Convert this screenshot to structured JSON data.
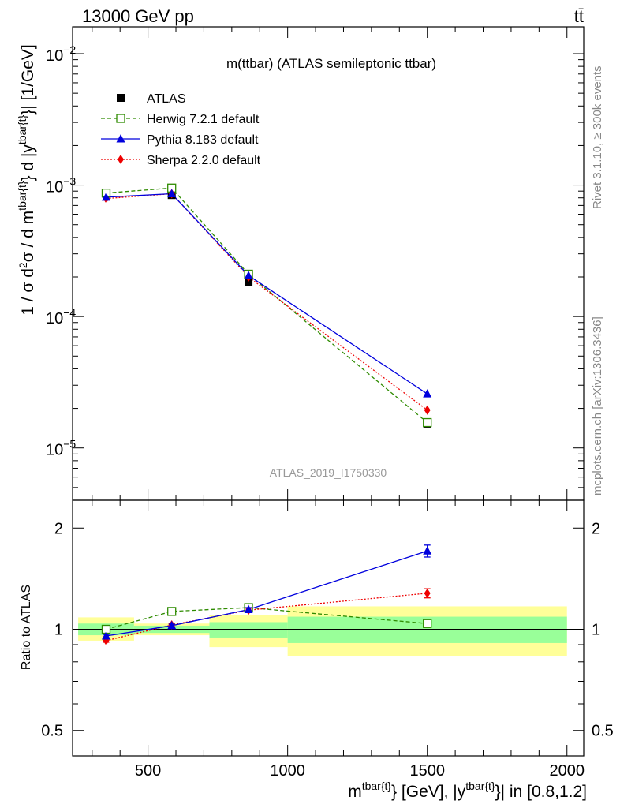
{
  "header": {
    "left": "13000 GeV pp",
    "right": "tt̄"
  },
  "side_labels": {
    "rivet": "Rivet 3.1.10, ≥ 300k events",
    "mcplots": "mcplots.cern.ch [arXiv:1306.3436]"
  },
  "chart_data": [
    {
      "panel": "main",
      "type": "scatter",
      "title": "m(ttbar) (ATLAS semileptonic ttbar)",
      "watermark": "ATLAS_2019_I1750330",
      "ylabel": "1 / σ d²σ / d m^{tbar{t}} d |y^{tbar{t}}| [1/GeV]",
      "y_scale": "log",
      "ylim": [
        4e-06,
        0.016
      ],
      "xlim": [
        230,
        2060
      ],
      "x_ticks": [
        500,
        1000,
        1500,
        2000
      ],
      "y_ticks": [
        {
          "value": 1e-05,
          "mantissa": "10",
          "exponent": "−5"
        },
        {
          "value": 0.0001,
          "mantissa": "10",
          "exponent": "−4"
        },
        {
          "value": 0.001,
          "mantissa": "10",
          "exponent": "−3"
        },
        {
          "value": 0.01,
          "mantissa": "10",
          "exponent": "−2"
        }
      ],
      "legend_position": "top-left",
      "series": [
        {
          "name": "ATLAS",
          "color": "#000000",
          "marker": "square-filled",
          "line": "none",
          "x": [
            350,
            585,
            860,
            1500
          ],
          "y": [
            0.00086,
            0.00084,
            0.000182,
            1.53e-05
          ]
        },
        {
          "name": "Herwig 7.2.1 default",
          "color": "#2e8b00",
          "marker": "square-open",
          "line": "dashed",
          "x": [
            350,
            585,
            860,
            1500
          ],
          "y": [
            0.00087,
            0.00095,
            0.00021,
            1.56e-05
          ]
        },
        {
          "name": "Pythia 8.183 default",
          "color": "#0000dd",
          "marker": "triangle",
          "line": "solid",
          "x": [
            350,
            585,
            860,
            1500
          ],
          "y": [
            0.00081,
            0.00086,
            0.000205,
            2.58e-05
          ]
        },
        {
          "name": "Sherpa 2.2.0 default",
          "color": "#ee0000",
          "marker": "diamond",
          "line": "dotted",
          "x": [
            350,
            585,
            860,
            1500
          ],
          "y": [
            0.00079,
            0.00086,
            0.0002,
            1.94e-05
          ]
        }
      ]
    },
    {
      "panel": "ratio",
      "type": "scatter",
      "xlabel": "m^{tbar{t}} [GeV], |y^{tbar{t}}| in [0.8,1.2]",
      "ylabel": "Ratio to ATLAS",
      "y_scale": "log",
      "ylim": [
        0.42,
        2.42
      ],
      "xlim": [
        230,
        2060
      ],
      "y_ticks": [
        {
          "value": 0.5,
          "label": "0.5"
        },
        {
          "value": 1,
          "label": "1"
        },
        {
          "value": 2,
          "label": "2"
        }
      ],
      "bins": [
        {
          "xlow": 250,
          "xhigh": 450,
          "stat_low": 0.96,
          "stat_high": 1.04,
          "tot_low": 0.925,
          "tot_high": 1.085
        },
        {
          "xlow": 450,
          "xhigh": 720,
          "stat_low": 0.975,
          "stat_high": 1.025,
          "tot_low": 0.96,
          "tot_high": 1.04
        },
        {
          "xlow": 720,
          "xhigh": 1000,
          "stat_low": 0.945,
          "stat_high": 1.05,
          "tot_low": 0.885,
          "tot_high": 1.105
        },
        {
          "xlow": 1000,
          "xhigh": 2000,
          "stat_low": 0.91,
          "stat_high": 1.09,
          "tot_low": 0.83,
          "tot_high": 1.17
        }
      ],
      "series": [
        {
          "name": "Herwig 7.2.1 default",
          "x": [
            350,
            585,
            860,
            1500
          ],
          "y": [
            1.0,
            1.13,
            1.16,
            1.04
          ],
          "err": [
            0,
            0,
            0,
            0
          ]
        },
        {
          "name": "Pythia 8.183 default",
          "x": [
            350,
            585,
            860,
            1500
          ],
          "y": [
            0.955,
            1.025,
            1.145,
            1.71
          ],
          "err": [
            0.01,
            0.01,
            0.015,
            0.07
          ]
        },
        {
          "name": "Sherpa 2.2.0 default",
          "x": [
            350,
            585,
            860,
            1500
          ],
          "y": [
            0.925,
            1.03,
            1.14,
            1.28
          ],
          "err": [
            0.01,
            0.01,
            0.015,
            0.04
          ]
        }
      ]
    }
  ]
}
